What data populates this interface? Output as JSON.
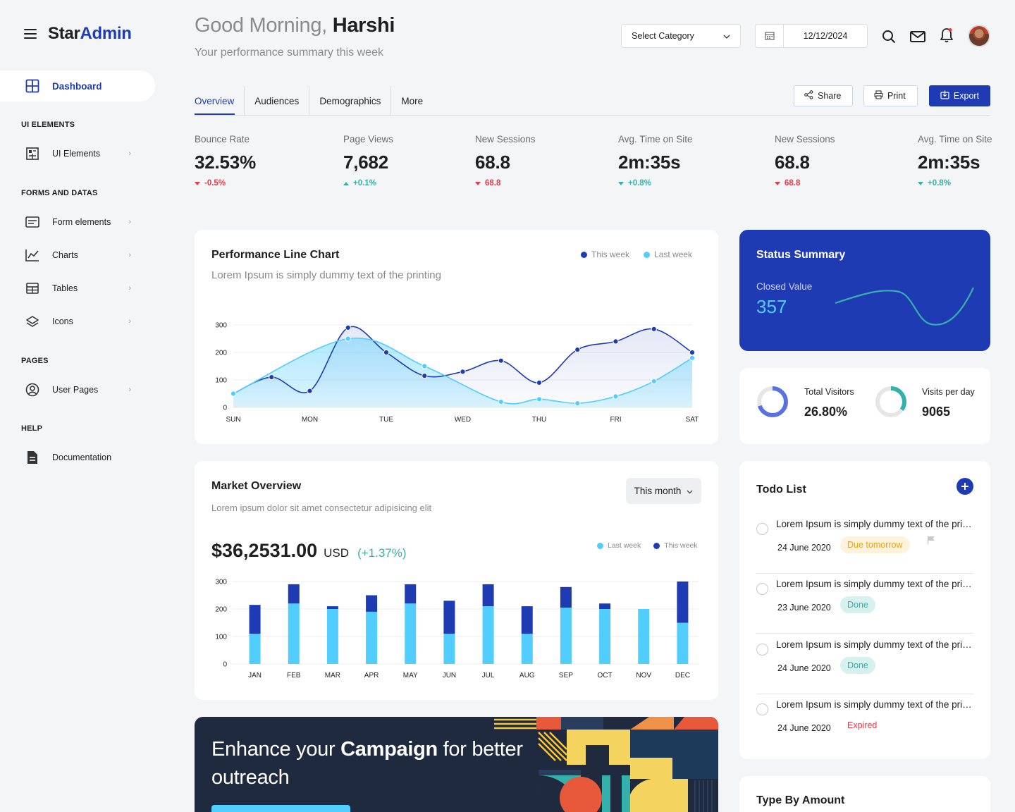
{
  "brand": {
    "part1": "Star",
    "part2": "Admin"
  },
  "sidebar": {
    "active": {
      "label": "Dashboard"
    },
    "sections": [
      "UI ELEMENTS",
      "FORMS AND DATAS",
      "PAGES",
      "HELP"
    ],
    "items": [
      {
        "label": "UI Elements"
      },
      {
        "label": "Form elements"
      },
      {
        "label": "Charts"
      },
      {
        "label": "Tables"
      },
      {
        "label": "Icons"
      },
      {
        "label": "User Pages"
      },
      {
        "label": "Documentation"
      }
    ]
  },
  "header": {
    "greeting": "Good Morning,",
    "name": "Harshi",
    "subtitle": "Your performance summary this week",
    "category_placeholder": "Select Category",
    "date": "12/12/2024"
  },
  "tabs": [
    "Overview",
    "Audiences",
    "Demographics",
    "More"
  ],
  "actions": {
    "share": "Share",
    "print": "Print",
    "export": "Export"
  },
  "stats": [
    {
      "label": "Bounce Rate",
      "value": "32.53%",
      "change": "-0.5%",
      "dir": "down"
    },
    {
      "label": "Page Views",
      "value": "7,682",
      "change": "+0.1%",
      "dir": "up"
    },
    {
      "label": "New Sessions",
      "value": "68.8",
      "change": "68.8",
      "dir": "down"
    },
    {
      "label": "Avg. Time on Site",
      "value": "2m:35s",
      "change": "+0.8%",
      "dir": "down-teal"
    },
    {
      "label": "New Sessions",
      "value": "68.8",
      "change": "68.8",
      "dir": "down"
    },
    {
      "label": "Avg. Time on Site",
      "value": "2m:35s",
      "change": "+0.8%",
      "dir": "down-teal"
    }
  ],
  "performance": {
    "title": "Performance Line Chart",
    "subtitle": "Lorem Ipsum is simply dummy text of the printing",
    "legend_this": "This week",
    "legend_last": "Last week"
  },
  "market": {
    "title": "Market Overview",
    "subtitle": "Lorem ipsum dolor sit amet consectetur adipisicing elit",
    "period": "This month",
    "amount": "$36,2531.00",
    "currency": "USD",
    "change": "(+1.37%)",
    "legend_last": "Last week",
    "legend_this": "This week"
  },
  "status": {
    "title": "Status Summary",
    "label": "Closed Value",
    "value": "357"
  },
  "visitors": {
    "total_label": "Total Visitors",
    "total_value": "26.80%",
    "total_fraction": 0.7,
    "perday_label": "Visits per day",
    "perday_value": "9065",
    "perday_fraction": 0.35
  },
  "todo": {
    "title": "Todo List",
    "items": [
      {
        "text": "Lorem Ipsum is simply dummy text of the printing",
        "date": "24 June 2020",
        "badge": "Due tomorrow",
        "kind": "due"
      },
      {
        "text": "Lorem Ipsum is simply dummy text of the printing",
        "date": "23 June 2020",
        "badge": "Done",
        "kind": "done"
      },
      {
        "text": "Lorem Ipsum is simply dummy text of the printing",
        "date": "24 June 2020",
        "badge": "Done",
        "kind": "done"
      },
      {
        "text": "Lorem Ipsum is simply dummy text of the printing",
        "date": "24 June 2020",
        "badge": "Expired",
        "kind": "exp"
      }
    ]
  },
  "type_by_amount": {
    "title": "Type By Amount"
  },
  "banner": {
    "pre": "Enhance your ",
    "bold": "Campaign",
    "post": " for better outreach"
  },
  "colors": {
    "primary": "#1f3bb3",
    "light_blue": "#52cdff",
    "teal": "#34b1aa",
    "red": "#e63946"
  },
  "chart_data": [
    {
      "type": "line",
      "x": [
        "SUN",
        "MON",
        "TUE",
        "WED",
        "THU",
        "FRI",
        "SAT"
      ],
      "ylim": [
        0,
        300
      ],
      "yticks": [
        0,
        100,
        200,
        300
      ],
      "series": [
        {
          "name": "This week",
          "points": [
            [
              0,
              50
            ],
            [
              0.5,
              110
            ],
            [
              1,
              60
            ],
            [
              1.5,
              290
            ],
            [
              2,
              200
            ],
            [
              2.5,
              115
            ],
            [
              3,
              130
            ],
            [
              3.5,
              170
            ],
            [
              4,
              90
            ],
            [
              4.5,
              210
            ],
            [
              5,
              240
            ],
            [
              5.5,
              285
            ],
            [
              6,
              200
            ]
          ]
        },
        {
          "name": "Last week",
          "points": [
            [
              0,
              50
            ],
            [
              1.5,
              250
            ],
            [
              2.5,
              150
            ],
            [
              3.5,
              20
            ],
            [
              4,
              30
            ],
            [
              4.5,
              15
            ],
            [
              5,
              40
            ],
            [
              5.5,
              95
            ],
            [
              6,
              180
            ]
          ]
        }
      ]
    },
    {
      "type": "bar",
      "categories": [
        "JAN",
        "FEB",
        "MAR",
        "APR",
        "MAY",
        "JUN",
        "JUL",
        "AUG",
        "SEP",
        "OCT",
        "NOV",
        "DEC"
      ],
      "ylim": [
        0,
        300
      ],
      "yticks": [
        0,
        100,
        200,
        300
      ],
      "stacked": true,
      "series": [
        {
          "name": "Last week",
          "values": [
            110,
            220,
            200,
            190,
            220,
            110,
            210,
            110,
            205,
            200,
            200,
            150
          ]
        },
        {
          "name": "This week",
          "values": [
            105,
            70,
            10,
            60,
            70,
            120,
            80,
            100,
            75,
            20,
            0,
            150
          ]
        }
      ]
    }
  ]
}
